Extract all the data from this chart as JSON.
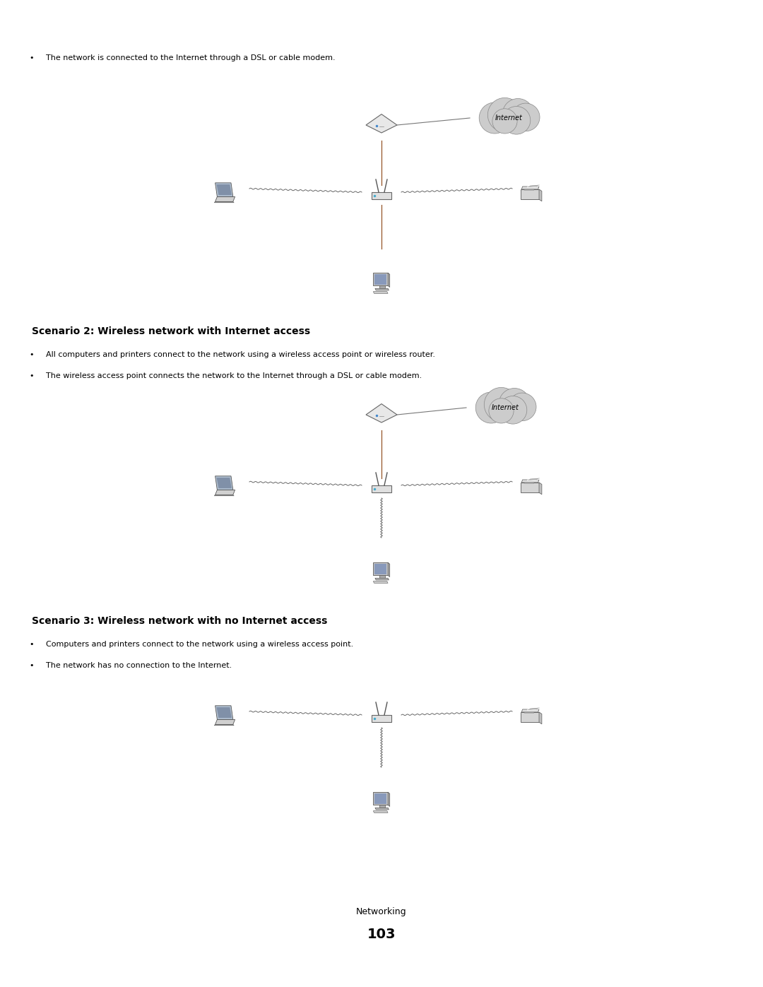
{
  "bg_color": "#ffffff",
  "page_width": 10.8,
  "page_height": 13.97,
  "bullet_text_1": "The network is connected to the Internet through a DSL or cable modem.",
  "scenario2_title": "Scenario 2: Wireless network with Internet access",
  "scenario2_bullet1": "All computers and printers connect to the network using a wireless access point or wireless router.",
  "scenario2_bullet2": "The wireless access point connects the network to the Internet through a DSL or cable modem.",
  "scenario3_title": "Scenario 3: Wireless network with no Internet access",
  "scenario3_bullet1": "Computers and printers connect to the network using a wireless access point.",
  "scenario3_bullet2": "The network has no connection to the Internet.",
  "footer_sub": "Networking",
  "footer_page": "103",
  "text_color": "#000000",
  "heading_color": "#000000",
  "line_color": "#8B4513",
  "wireless_color": "#555555",
  "cloud_color": "#cccccc",
  "cloud_edge": "#888888"
}
